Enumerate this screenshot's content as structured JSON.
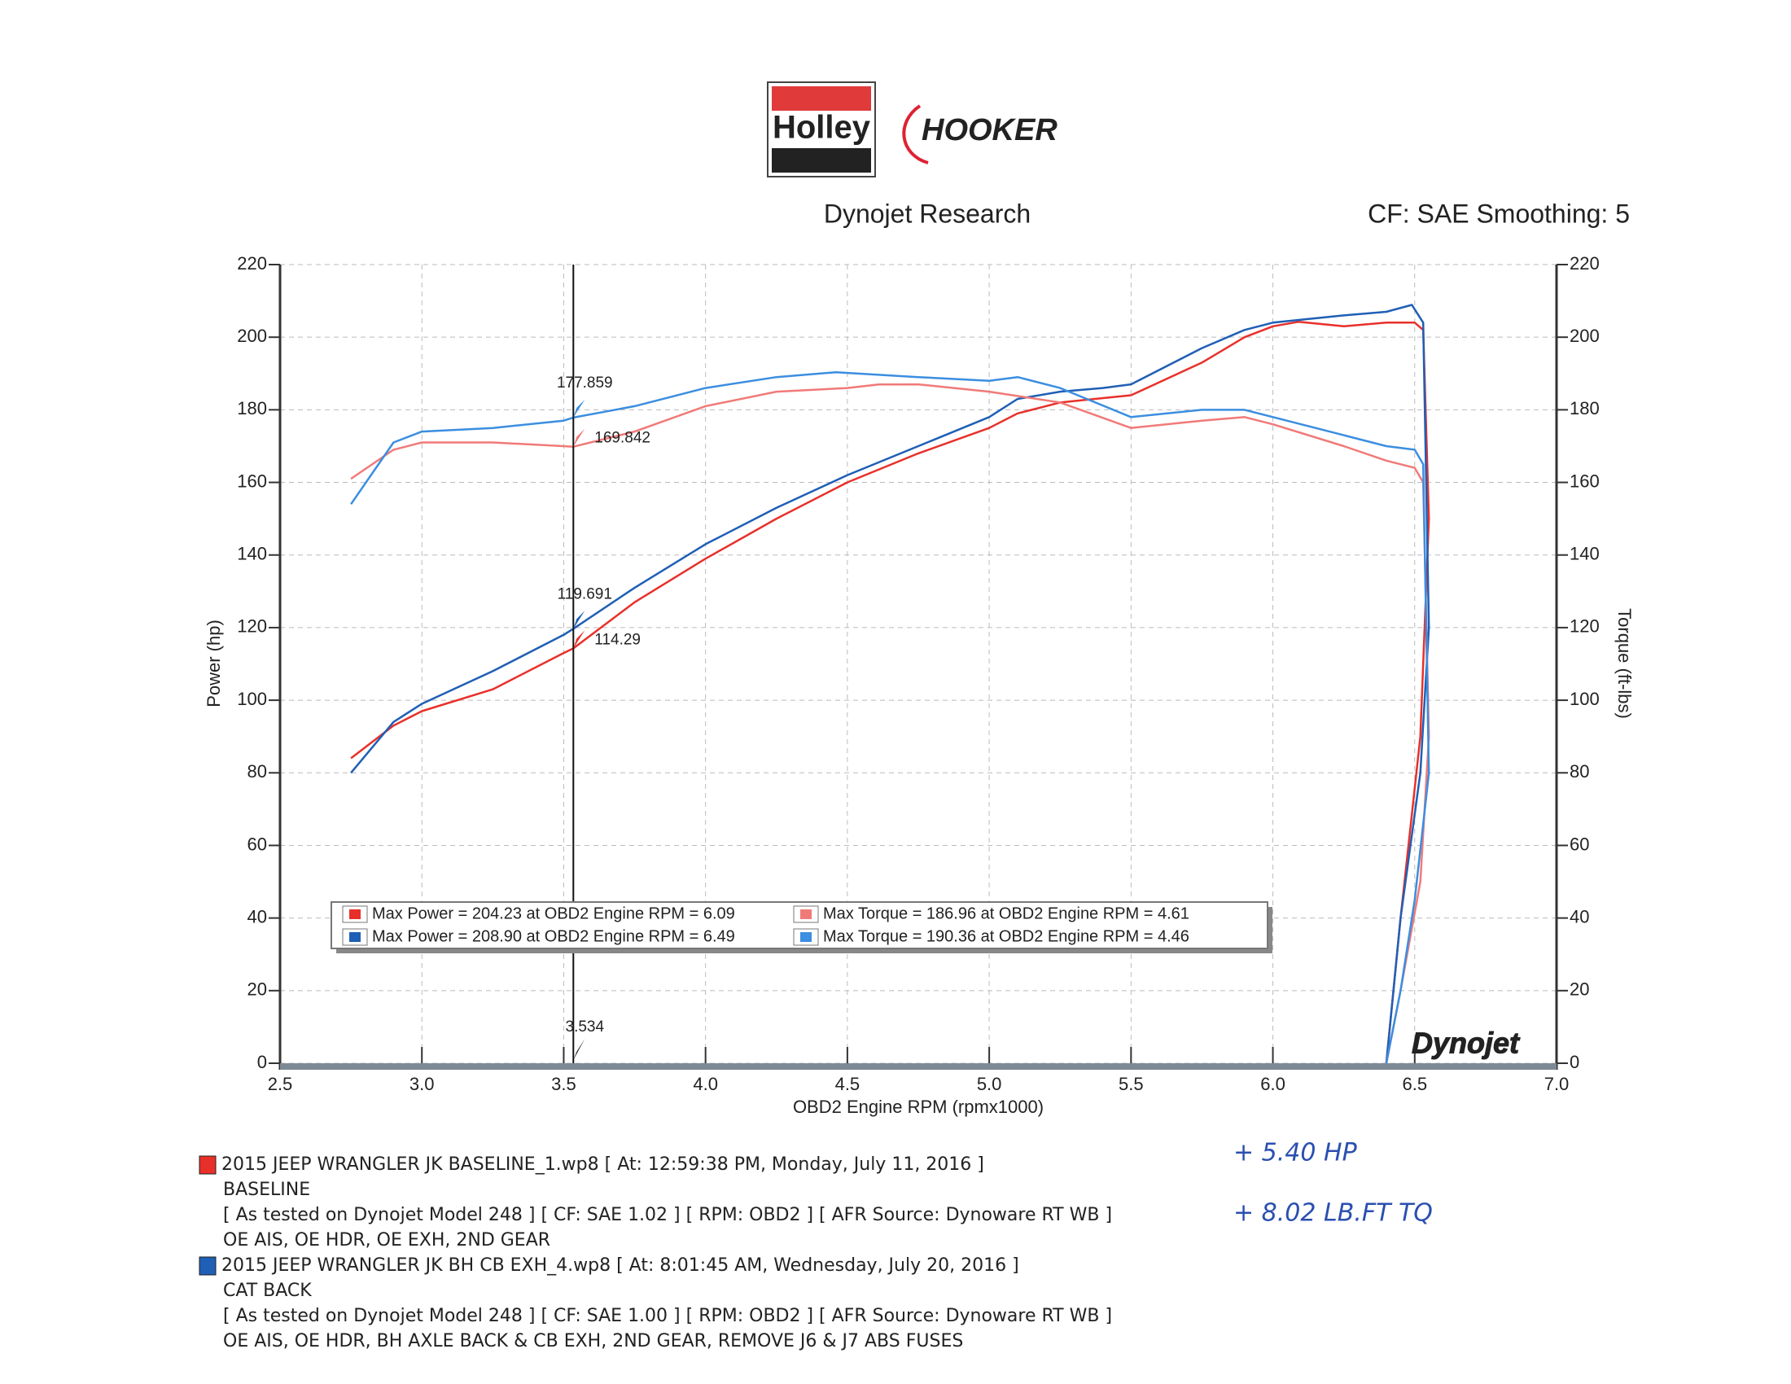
{
  "logos": [
    "Holley",
    "HOOKER"
  ],
  "chart_data": {
    "type": "line",
    "title": "Dynojet Research",
    "subtitle": "CF: SAE Smoothing: 5",
    "x_label": "OBD2 Engine RPM (rpmx1000)",
    "y_label": "Power (hp)",
    "y2_label": "Torque (ft-lbs)",
    "watermark": "Dynojet",
    "xlim": [
      2.5,
      7.0
    ],
    "xticks": [
      2.5,
      {
        "value": 3,
        "label": "3.0"
      },
      3.5,
      {
        "value": 4,
        "label": "4.0"
      },
      4.5,
      {
        "value": 5,
        "label": "5.0"
      },
      5.5,
      {
        "value": 6,
        "label": "6.0"
      },
      6.5,
      {
        "value": 7,
        "label": "7.0"
      }
    ],
    "ylim": [
      0,
      220
    ],
    "yticks": [
      0,
      20,
      40,
      60,
      80,
      100,
      120,
      140,
      160,
      180,
      200,
      220
    ],
    "y2lim": [
      0,
      220
    ],
    "y2ticks": [
      0,
      20,
      40,
      60,
      80,
      100,
      120,
      140,
      160,
      180,
      200,
      220
    ],
    "grid": true,
    "cursor_x": 3.534,
    "series": [
      {
        "name": "Max Power = 204.23 at OBD2 Engine RPM = 6.09",
        "color": "#e8302a",
        "axis": "y",
        "cursor_value": 114.29,
        "x": [
          2.75,
          2.9,
          3.0,
          3.25,
          3.5,
          3.534,
          3.75,
          4.0,
          4.25,
          4.5,
          4.75,
          5.0,
          5.1,
          5.25,
          5.5,
          5.75,
          5.9,
          6.0,
          6.09,
          6.25,
          6.4,
          6.5,
          6.53,
          6.55,
          6.52,
          6.45,
          6.4
        ],
        "values": [
          84,
          93,
          97,
          103,
          113,
          114.29,
          127,
          139,
          150,
          160,
          168,
          175,
          179,
          182,
          184,
          193,
          200,
          203,
          204.23,
          203,
          204,
          204,
          202,
          150,
          90,
          40,
          0
        ]
      },
      {
        "name": "Max Power = 208.90 at OBD2 Engine RPM = 6.49",
        "color": "#1f5fb5",
        "axis": "y",
        "cursor_value": 119.691,
        "x": [
          2.75,
          2.9,
          3.0,
          3.25,
          3.5,
          3.534,
          3.75,
          4.0,
          4.25,
          4.5,
          4.75,
          5.0,
          5.1,
          5.25,
          5.4,
          5.5,
          5.75,
          5.9,
          6.0,
          6.25,
          6.4,
          6.49,
          6.53,
          6.55,
          6.52,
          6.45,
          6.4
        ],
        "values": [
          80,
          94,
          99,
          108,
          118,
          119.691,
          131,
          143,
          153,
          162,
          170,
          178,
          183,
          185,
          186,
          187,
          197,
          202,
          204,
          206,
          207,
          208.9,
          204,
          120,
          80,
          40,
          0
        ]
      },
      {
        "name": "Max Torque = 186.96 at OBD2 Engine RPM = 4.61",
        "color": "#f07a78",
        "axis": "y2",
        "cursor_value": 169.842,
        "x": [
          2.75,
          2.9,
          3.0,
          3.25,
          3.5,
          3.534,
          3.75,
          4.0,
          4.25,
          4.5,
          4.61,
          4.75,
          5.0,
          5.25,
          5.5,
          5.75,
          5.9,
          6.0,
          6.25,
          6.4,
          6.5,
          6.53,
          6.55,
          6.52,
          6.45,
          6.4
        ],
        "values": [
          161,
          169,
          171,
          171,
          170,
          169.842,
          174,
          181,
          185,
          186,
          186.96,
          187,
          185,
          182,
          175,
          177,
          178,
          176,
          170,
          166,
          164,
          160,
          90,
          50,
          20,
          0
        ]
      },
      {
        "name": "Max Torque = 190.36 at OBD2 Engine RPM = 4.46",
        "color": "#3b8ee0",
        "axis": "y2",
        "cursor_value": 177.859,
        "x": [
          2.75,
          2.9,
          3.0,
          3.25,
          3.5,
          3.534,
          3.75,
          4.0,
          4.25,
          4.46,
          4.75,
          5.0,
          5.1,
          5.25,
          5.5,
          5.75,
          5.9,
          6.0,
          6.25,
          6.4,
          6.5,
          6.53,
          6.55,
          6.5,
          6.45,
          6.4
        ],
        "values": [
          154,
          171,
          174,
          175,
          177,
          177.859,
          181,
          186,
          189,
          190.36,
          189,
          188,
          189,
          186,
          178,
          180,
          180,
          178,
          173,
          170,
          169,
          165,
          80,
          45,
          20,
          0
        ]
      }
    ]
  },
  "runs": [
    {
      "color": "#e8302a",
      "lines": [
        "2015 JEEP WRANGLER JK BASELINE_1.wp8 [ At: 12:59:38 PM, Monday, July 11, 2016 ]",
        "BASELINE",
        "[ As tested on Dynojet Model 248 ]  [ CF: SAE 1.02 ]  [ RPM: OBD2 ]   [ AFR Source: Dynoware RT WB ]",
        "OE AIS, OE HDR, OE EXH, 2ND GEAR"
      ]
    },
    {
      "color": "#1f5fb5",
      "lines": [
        "2015 JEEP WRANGLER JK BH CB EXH_4.wp8 [ At: 8:01:45 AM, Wednesday, July 20, 2016 ]",
        "CAT BACK",
        "[ As tested on Dynojet Model 248 ]  [ CF: SAE 1.00 ]  [ RPM: OBD2 ]   [ AFR Source: Dynoware RT WB ]",
        "OE AIS, OE HDR, BH AXLE BACK & CB EXH, 2ND GEAR, REMOVE  J6 & J7 ABS FUSES"
      ]
    }
  ],
  "notes": [
    "+ 5.40  HP",
    "+ 8.02  LB.FT  TQ"
  ]
}
